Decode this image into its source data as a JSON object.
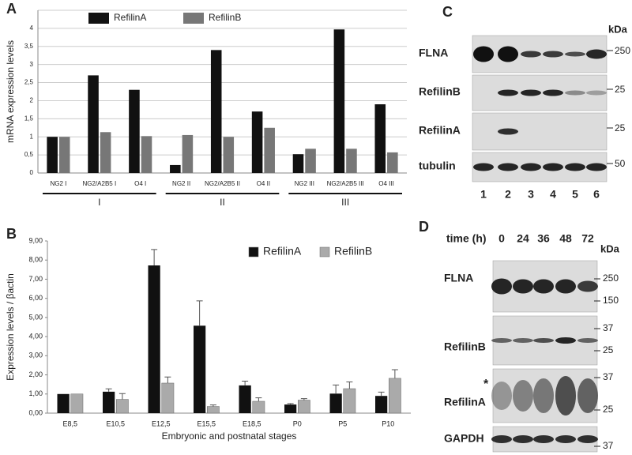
{
  "panel_letters": [
    "A",
    "B",
    "C",
    "D"
  ],
  "chart_data": [
    {
      "type": "bar",
      "y_label": "mRNA expression levels",
      "categories": [
        "NG2 I",
        "NG2/A2B5 I",
        "O4 I",
        "NG2 II",
        "NG2/A2B5 II",
        "O4 II",
        "NG2 III",
        "NG2/A2B5 III",
        "O4 III"
      ],
      "groups": [
        "I",
        "II",
        "III"
      ],
      "series": [
        {
          "name": "RefilinA",
          "color": "#111111",
          "values": [
            1.0,
            2.7,
            2.3,
            0.22,
            3.4,
            1.7,
            0.52,
            3.97,
            1.9
          ]
        },
        {
          "name": "RefilinB",
          "color": "#777777",
          "values": [
            1.0,
            1.13,
            1.02,
            1.05,
            1.0,
            1.25,
            0.67,
            0.67,
            0.57
          ]
        }
      ],
      "ylim": [
        0,
        4.5
      ],
      "yticks": [
        0,
        {
          "value": 0.5,
          "label": "0,5"
        },
        1,
        {
          "value": 1.5,
          "label": "1,5"
        },
        2,
        {
          "value": 2.5,
          "label": "2,5"
        },
        3,
        {
          "value": 3.5,
          "label": "3,5"
        },
        4
      ],
      "grid": true,
      "legend": "top"
    },
    {
      "type": "bar",
      "x_label": "Embryonic and postnatal stages",
      "y_label": "Expression levels / βactin",
      "categories": [
        "E8,5",
        "E10,5",
        "E12,5",
        "E15,5",
        "E18,5",
        "P0",
        "P5",
        "P10"
      ],
      "series": [
        {
          "name": "RefilinA",
          "color": "#111111",
          "values": [
            1.0,
            1.12,
            7.72,
            4.57,
            1.45,
            0.45,
            1.02,
            0.9
          ],
          "errors": [
            null,
            0.15,
            0.83,
            1.3,
            0.22,
            0.05,
            0.45,
            0.2
          ]
        },
        {
          "name": "RefilinB",
          "color": "#aaaaaa",
          "values": [
            1.0,
            0.72,
            1.57,
            0.35,
            0.62,
            0.68,
            1.28,
            1.82
          ],
          "errors": [
            null,
            0.3,
            0.32,
            0.08,
            0.18,
            0.08,
            0.35,
            0.45
          ]
        }
      ],
      "ylim": [
        0,
        9
      ],
      "yticks": [
        {
          "value": 0,
          "label": "0,00"
        },
        {
          "value": 1,
          "label": "1,00"
        },
        {
          "value": 2,
          "label": "2,00"
        },
        {
          "value": 3,
          "label": "3,00"
        },
        {
          "value": 4,
          "label": "4,00"
        },
        {
          "value": 5,
          "label": "5,00"
        },
        {
          "value": 6,
          "label": "6,00"
        },
        {
          "value": 7,
          "label": "7,00"
        },
        {
          "value": 8,
          "label": "8,00"
        },
        {
          "value": 9,
          "label": "9,00"
        }
      ],
      "grid": false,
      "legend": "top right"
    }
  ],
  "blot_c": {
    "unit": "kDa",
    "rows": [
      {
        "label": "FLNA",
        "marker": "250"
      },
      {
        "label": "RefilinB",
        "marker": "25"
      },
      {
        "label": "RefilinA",
        "marker": "25"
      },
      {
        "label": "tubulin",
        "marker": "50"
      }
    ],
    "lanes": [
      "1",
      "2",
      "3",
      "4",
      "5",
      "6"
    ]
  },
  "blot_d": {
    "header": "time (h)",
    "unit": "kDa",
    "lanes": [
      "0",
      "24",
      "36",
      "48",
      "72"
    ],
    "asterisk": "*",
    "rows": [
      {
        "label": "FLNA",
        "markers": [
          "250",
          "150"
        ]
      },
      {
        "label": "RefilinB",
        "markers": [
          "37",
          "25"
        ]
      },
      {
        "label": "RefilinA",
        "markers": [
          "37",
          "25"
        ]
      },
      {
        "label": "GAPDH",
        "markers": [
          "37"
        ]
      }
    ]
  }
}
